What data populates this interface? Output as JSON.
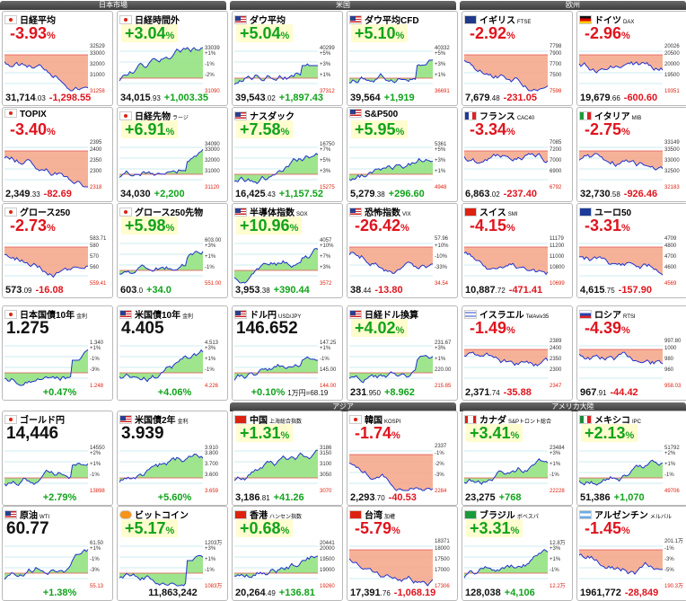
{
  "sections": [
    {
      "label": "日本市場"
    },
    {
      "label": "米国"
    },
    {
      "label": "欧州"
    },
    {
      "label": "アジア"
    },
    {
      "label": "アメリカ大陸"
    }
  ],
  "tiles": [
    {
      "name": "日経平均",
      "sub": "",
      "flag": "jp",
      "pct": "-3.93",
      "dir": "dn",
      "val": "31,714",
      "vs": ".03",
      "chg": "-1,298.55",
      "ticks": [
        "33000",
        "32000",
        "31000"
      ],
      "cur": "32529",
      "open": "31258",
      "wm": ""
    },
    {
      "name": "日経時間外",
      "sub": "",
      "flag": "jp",
      "pct": "+3.04",
      "dir": "up",
      "val": "34,015",
      "vs": ".93",
      "chg": "+1,003.35",
      "ticks": [
        "+1%",
        "-1%",
        "-2%"
      ],
      "cur": "33039",
      "open": "31090",
      "wm": ""
    },
    {
      "name": "ダウ平均",
      "sub": "",
      "flag": "us",
      "pct": "+5.04",
      "dir": "up",
      "val": "39,543",
      "vs": ".02",
      "chg": "+1,897.43",
      "ticks": [
        "+5%",
        "+3%",
        "+1%"
      ],
      "cur": "40299",
      "open": "37312",
      "wm": ""
    },
    {
      "name": "ダウ平均CFD",
      "sub": "",
      "flag": "us",
      "pct": "+5.10",
      "dir": "up",
      "val": "39,564",
      "vs": "",
      "chg": "+1,919",
      "ticks": [
        "+5%",
        "+3%",
        "+1%"
      ],
      "cur": "40332",
      "open": "36691",
      "wm": ""
    },
    {
      "name": "イギリス",
      "sub": "FTSE",
      "flag": "uk",
      "pct": "-2.92",
      "dir": "dn",
      "val": "7,679",
      "vs": ".48",
      "chg": "-231.05",
      "ticks": [
        "7900",
        "7700",
        "7500"
      ],
      "cur": "7798",
      "open": "7598",
      "wm": ""
    },
    {
      "name": "ドイツ",
      "sub": "DAX",
      "flag": "de",
      "pct": "-2.96",
      "dir": "dn",
      "val": "19,679",
      "vs": ".66",
      "chg": "-600.60",
      "ticks": [
        "20500",
        "20000",
        "19500"
      ],
      "cur": "20026",
      "open": "19351",
      "wm": ""
    },
    {
      "name": "TOPIX",
      "sub": "",
      "flag": "jp",
      "pct": "-3.40",
      "dir": "dn",
      "val": "2,349",
      "vs": ".33",
      "chg": "-82.69",
      "ticks": [
        "2400",
        "2350",
        "2300"
      ],
      "cur": "2395",
      "open": "2318",
      "wm": ""
    },
    {
      "name": "日経先物",
      "sub": "ラージ",
      "flag": "jp",
      "pct": "+6.91",
      "dir": "up",
      "val": "34,030",
      "vs": "",
      "chg": "+2,200",
      "ticks": [
        "33000",
        "32000",
        "31000"
      ],
      "cur": "34090",
      "open": "31120",
      "wm": ""
    },
    {
      "name": "ナスダック",
      "sub": "",
      "flag": "us",
      "pct": "+7.58",
      "dir": "up",
      "val": "16,425",
      "vs": ".43",
      "chg": "+1,157.52",
      "ticks": [
        "+7%",
        "+5%",
        "+3%"
      ],
      "cur": "16750",
      "open": "15275",
      "wm": ""
    },
    {
      "name": "S&P500",
      "sub": "",
      "flag": "us",
      "pct": "+5.95",
      "dir": "up",
      "val": "5,279",
      "vs": ".38",
      "chg": "+296.60",
      "ticks": [
        "+5%",
        "+3%",
        "+1%"
      ],
      "cur": "5361",
      "open": "4948",
      "wm": ""
    },
    {
      "name": "フランス",
      "sub": "CAC40",
      "flag": "fr",
      "pct": "-3.34",
      "dir": "dn",
      "val": "6,863",
      "vs": ".02",
      "chg": "-237.40",
      "ticks": [
        "7200",
        "7000",
        "6900"
      ],
      "cur": "7085",
      "open": "6792",
      "wm": ""
    },
    {
      "name": "イタリア",
      "sub": "MIB",
      "flag": "it",
      "pct": "-2.75",
      "dir": "dn",
      "val": "32,730",
      "vs": ".58",
      "chg": "-926.46",
      "ticks": [
        "33500",
        "33000",
        "32500"
      ],
      "cur": "33149",
      "open": "32183",
      "wm": ""
    },
    {
      "name": "グロース250",
      "sub": "",
      "flag": "jp",
      "pct": "-2.73",
      "dir": "dn",
      "val": "573",
      "vs": ".09",
      "chg": "-16.08",
      "ticks": [
        "580",
        "570",
        "560"
      ],
      "cur": "583.71",
      "open": "559.41",
      "wm": ""
    },
    {
      "name": "グロース250先物",
      "sub": "",
      "flag": "jp",
      "pct": "+5.98",
      "dir": "up",
      "val": "603",
      "vs": ".0",
      "chg": "+34.0",
      "ticks": [
        "+3%",
        "+1%",
        "-1%"
      ],
      "cur": "603.00",
      "open": "551.00",
      "wm": ""
    },
    {
      "name": "半導体指数",
      "sub": "SOX",
      "flag": "us",
      "pct": "+10.96",
      "dir": "up",
      "val": "3,953",
      "vs": ".38",
      "chg": "+390.44",
      "ticks": [
        "+10%",
        "+7%",
        "+3%"
      ],
      "cur": "4057",
      "open": "3572",
      "wm": ""
    },
    {
      "name": "恐怖指数",
      "sub": "VIX",
      "flag": "us",
      "pct": "-26.42",
      "dir": "dn",
      "val": "38",
      "vs": ".44",
      "chg": "-13.80",
      "ticks": [
        "+10%",
        "-10%",
        "-33%"
      ],
      "cur": "57.96",
      "open": "34.54",
      "wm": ""
    },
    {
      "name": "スイス",
      "sub": "SMI",
      "flag": "ch",
      "pct": "-4.15",
      "dir": "dn",
      "val": "10,887",
      "vs": ".72",
      "chg": "-471.41",
      "ticks": [
        "11200",
        "11000",
        "10800"
      ],
      "cur": "11179",
      "open": "10699",
      "wm": ""
    },
    {
      "name": "ユーロ50",
      "sub": "",
      "flag": "eu",
      "pct": "-3.31",
      "dir": "dn",
      "val": "4,615",
      "vs": ".75",
      "chg": "-157.90",
      "ticks": [
        "4800",
        "4700",
        "4600"
      ],
      "cur": "4709",
      "open": "4569",
      "wm": ""
    },
    {
      "name": "日本国債10年",
      "sub": "金利",
      "flag": "jp",
      "big": "1.275",
      "dir": "up",
      "bot": "+0.47%",
      "ticks": [
        "+1%",
        "-1%",
        "-3%"
      ],
      "cur": "1.340",
      "open": "1.248",
      "wm": ""
    },
    {
      "name": "米国債10年",
      "sub": "金利",
      "flag": "us",
      "big": "4.405",
      "dir": "up",
      "bot": "+4.06%",
      "ticks": [
        "+3%",
        "+1%",
        "-1%"
      ],
      "cur": "4.513",
      "open": "4.226",
      "wm": ""
    },
    {
      "name": "ドル円",
      "sub": "USD/JPY",
      "flag": "us",
      "big": "146.652",
      "dir": "up",
      "bot": "+0.10%",
      "ext": "1万円=68.19",
      "ticks": [
        "+1%",
        "-1%",
        "145.00"
      ],
      "cur": "147.25",
      "open": "144.00",
      "wm": ""
    },
    {
      "name": "日経ドル換算",
      "sub": "",
      "flag": "us",
      "pct": "+4.02",
      "dir": "up",
      "val": "231",
      "vs": ".950",
      "chg": "+8.962",
      "ticks": [
        "+3%",
        "+1%",
        "220.00"
      ],
      "cur": "231.67",
      "open": "215.85",
      "wm": ""
    },
    {
      "name": "イスラエル",
      "sub": "TelAviv35",
      "flag": "il",
      "pct": "-1.49",
      "dir": "dn",
      "val": "2,371",
      "vs": ".74",
      "chg": "-35.88",
      "ticks": [
        "2400",
        "2350",
        "2300"
      ],
      "cur": "2389",
      "open": "2347",
      "wm": ""
    },
    {
      "name": "ロシア",
      "sub": "RTSI",
      "flag": "ru",
      "pct": "-4.39",
      "dir": "dn",
      "val": "967",
      "vs": ".91",
      "chg": "-44.42",
      "ticks": [
        "1000",
        "980",
        "960"
      ],
      "cur": "997.80",
      "open": "958.03",
      "wm": ""
    },
    {
      "name": "ゴールド円",
      "sub": "",
      "flag": "jp",
      "big": "14,446",
      "dir": "up",
      "bot": "+2.79%",
      "ticks": [
        "+2%",
        "+1%",
        "-1%"
      ],
      "cur": "14550",
      "open": "13898",
      "wm": ""
    },
    {
      "name": "米国債2年",
      "sub": "金利",
      "flag": "us",
      "big": "3.939",
      "dir": "up",
      "bot": "+5.60%",
      "ticks": [
        "3.800",
        "3.700",
        "3.600"
      ],
      "cur": "3.910",
      "open": "3.659",
      "wm": ""
    },
    {
      "name": "中国",
      "sub": "上海総合指数",
      "flag": "cn",
      "pct": "+1.31",
      "dir": "up",
      "val": "3,186",
      "vs": ".81",
      "chg": "+41.26",
      "ticks": [
        "3150",
        "3100",
        "3050"
      ],
      "cur": "3186",
      "open": "3070",
      "wm": ""
    },
    {
      "name": "韓国",
      "sub": "KOSPI",
      "flag": "kr",
      "pct": "-1.74",
      "dir": "dn",
      "val": "2,293",
      "vs": ".70",
      "chg": "-40.53",
      "ticks": [
        "-1%",
        "-2%",
        "-3%"
      ],
      "cur": "2337",
      "open": "2284",
      "wm": ""
    },
    {
      "name": "カナダ",
      "sub": "S&Pトロント総合",
      "flag": "ca",
      "pct": "+3.41",
      "dir": "up",
      "val": "23,275",
      "vs": "",
      "chg": "+768",
      "ticks": [
        "+3%",
        "+1%",
        "-1%"
      ],
      "cur": "23484",
      "open": "22228",
      "wm": ""
    },
    {
      "name": "メキシコ",
      "sub": "IPC",
      "flag": "mx",
      "pct": "+2.13",
      "dir": "up",
      "val": "51,386",
      "vs": "",
      "chg": "+1,070",
      "ticks": [
        "+2%",
        "+1%",
        "-1%"
      ],
      "cur": "51792",
      "open": "49706",
      "wm": ""
    },
    {
      "name": "原油",
      "sub": "WTI",
      "flag": "us",
      "big": "60.77",
      "dir": "up",
      "bot": "+1.38%",
      "ticks": [
        "+1%",
        "-1%",
        "-3%"
      ],
      "cur": "61.50",
      "open": "55.13",
      "wm": ""
    },
    {
      "name": "ビットコイン",
      "sub": "",
      "flag": "btc",
      "pct": "+5.17",
      "dir": "up",
      "val": "11,863,242",
      "vs": "",
      "chg": "",
      "ticks": [
        "+3%",
        "+1%",
        "-1%"
      ],
      "cur": "1203万",
      "open": "1083万",
      "wm": ""
    },
    {
      "name": "香港",
      "sub": "ハンセン指数",
      "flag": "hk",
      "pct": "+0.68",
      "dir": "up",
      "val": "20,264",
      "vs": ".49",
      "chg": "+136.81",
      "ticks": [
        "20000",
        "19500",
        "19000"
      ],
      "cur": "20441",
      "open": "19260",
      "wm": ""
    },
    {
      "name": "台湾",
      "sub": "加權",
      "flag": "tw",
      "pct": "-5.79",
      "dir": "dn",
      "val": "17,391",
      "vs": ".76",
      "chg": "-1,068.19",
      "ticks": [
        "18000",
        "17500",
        "17000"
      ],
      "cur": "18371",
      "open": "17306",
      "wm": ""
    },
    {
      "name": "ブラジル",
      "sub": "ボベスパ",
      "flag": "br",
      "pct": "+3.31",
      "dir": "up",
      "val": "128,038",
      "vs": "",
      "chg": "+4,106",
      "ticks": [
        "+3%",
        "+1%",
        "-1%"
      ],
      "cur": "12.8万",
      "open": "12.2万",
      "wm": ""
    },
    {
      "name": "アルゼンチン",
      "sub": "メルバル",
      "flag": "ar",
      "pct": "-1.45",
      "dir": "dn",
      "val": "1961,772",
      "vs": "",
      "chg": "-28,849",
      "ticks": [
        "-1%",
        "-3%",
        "-5%"
      ],
      "cur": "201.1万",
      "open": "190.3万",
      "wm": ""
    }
  ],
  "colors": {
    "up": "#11a31b",
    "down": "#e0141e",
    "line": "#2233cc",
    "fillUp": "#8ee07a",
    "fillDown": "#f4a486",
    "highlight": "#fffccf"
  }
}
